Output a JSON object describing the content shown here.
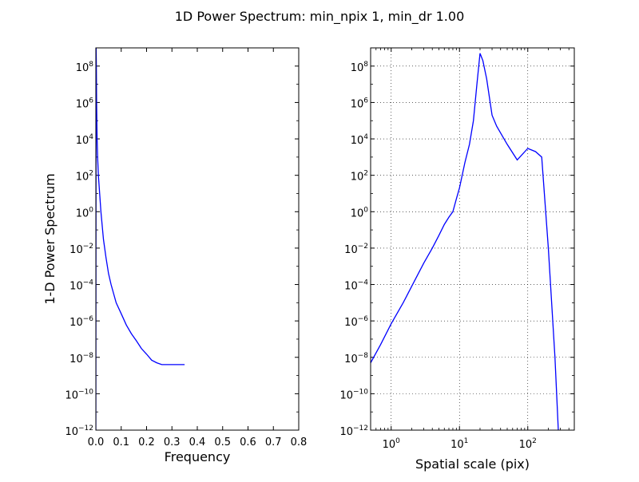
{
  "figure": {
    "title": "1D Power Spectrum: min_npix 1, min_dr 1.00"
  },
  "chart_data": [
    {
      "type": "line",
      "name": "left-panel",
      "xlabel": "Frequency",
      "ylabel": "1-D Power Spectrum",
      "xlim": [
        0.0,
        0.8
      ],
      "ylim_log10": [
        -12,
        9
      ],
      "yscale": "log",
      "xscale": "linear",
      "grid": false,
      "color": "#0000ff",
      "xticks": [
        0.0,
        0.1,
        0.2,
        0.3,
        0.4,
        0.5,
        0.6,
        0.7,
        0.8
      ],
      "xtick_labels": [
        "0.0",
        "0.1",
        "0.2",
        "0.3",
        "0.4",
        "0.5",
        "0.6",
        "0.7",
        "0.8"
      ],
      "ytick_exponents": [
        -12,
        -10,
        -8,
        -6,
        -4,
        -2,
        0,
        2,
        4,
        6,
        8
      ],
      "ytick_base": "10",
      "series": [
        {
          "x": [
            0.0,
            0.001,
            0.002,
            0.003,
            0.005,
            0.007,
            0.01,
            0.015,
            0.02,
            0.03,
            0.04,
            0.05,
            0.06,
            0.08,
            0.1,
            0.12,
            0.14,
            0.16,
            0.18,
            0.2,
            0.22,
            0.24,
            0.26,
            0.28,
            0.3,
            0.32,
            0.34,
            0.35
          ],
          "y": [
            1e-12,
            1000000000.0,
            100000000.0,
            1000000.0,
            10000.0,
            1000.0,
            100.0,
            10.0,
            1.0,
            0.03,
            0.003,
            0.0004,
            0.0001,
            1e-05,
            2.5e-06,
            6e-07,
            2e-07,
            8e-08,
            3e-08,
            1.5e-08,
            7e-09,
            5e-09,
            4e-09,
            4e-09,
            4e-09,
            4e-09,
            4e-09,
            4e-09
          ]
        }
      ]
    },
    {
      "type": "line",
      "name": "right-panel",
      "xlabel": "Spatial scale (pix)",
      "ylabel": "",
      "xscale": "log",
      "yscale": "log",
      "xlim": [
        0.5,
        480
      ],
      "ylim_log10": [
        -12,
        9
      ],
      "grid": true,
      "color": "#0000ff",
      "xtick_exponents": [
        0,
        1,
        2
      ],
      "xtick_base": "10",
      "ytick_exponents": [
        -12,
        -10,
        -8,
        -6,
        -4,
        -2,
        0,
        2,
        4,
        6,
        8
      ],
      "ytick_base": "10",
      "series": [
        {
          "x": [
            0.5,
            0.7,
            1,
            1.5,
            2,
            3,
            4,
            5,
            6,
            7,
            8,
            9,
            10,
            12,
            14,
            16,
            18,
            20,
            22,
            25,
            30,
            35,
            50,
            70,
            100,
            130,
            160,
            200,
            250,
            280
          ],
          "y": [
            5e-09,
            5e-08,
            7e-07,
            1e-05,
            8e-05,
            0.0015,
            0.01,
            0.05,
            0.2,
            0.5,
            1.0,
            5.0,
            20.0,
            500.0,
            5000.0,
            100000.0,
            10000000.0,
            500000000.0,
            200000000.0,
            20000000.0,
            200000.0,
            50000.0,
            5000.0,
            700.0,
            3000.0,
            2000.0,
            1000.0,
            0.01,
            1e-08,
            1e-12
          ]
        }
      ]
    }
  ]
}
